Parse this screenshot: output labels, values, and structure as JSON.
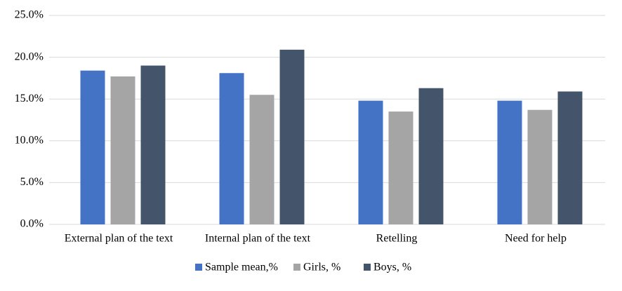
{
  "chart_data": {
    "type": "bar",
    "categories": [
      "External plan of the text",
      "Internal plan of the text",
      "Retelling",
      "Need for help"
    ],
    "series": [
      {
        "name": "Sample mean,%",
        "color": "#4472c4",
        "values": [
          18.4,
          18.1,
          14.8,
          14.8
        ]
      },
      {
        "name": "Girls, %",
        "color": "#a5a5a5",
        "values": [
          17.7,
          15.5,
          13.5,
          13.7
        ]
      },
      {
        "name": "Boys, %",
        "color": "#44546a",
        "values": [
          19.0,
          20.9,
          16.3,
          15.9
        ]
      }
    ],
    "ylim": [
      0,
      25
    ],
    "yticks": [
      {
        "value": 0,
        "label": "0.0%"
      },
      {
        "value": 5,
        "label": "5.0%"
      },
      {
        "value": 10,
        "label": "10.0%"
      },
      {
        "value": 15,
        "label": "15.0%"
      },
      {
        "value": 20,
        "label": "20.0%"
      },
      {
        "value": 25,
        "label": "25.0%"
      }
    ],
    "grid": true,
    "legend": "bottom"
  }
}
